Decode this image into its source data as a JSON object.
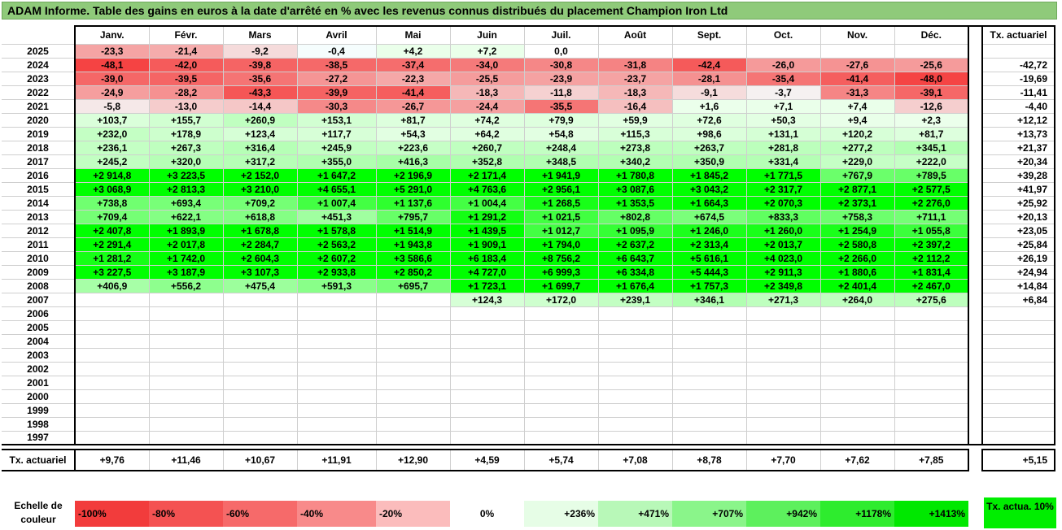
{
  "title": "ADAM Informe. Table des gains en euros à la date d'arrêté en % avec les revenus connus distribués du placement Champion Iron Ltd",
  "months": [
    "Janv.",
    "Févr.",
    "Mars",
    "Avril",
    "Mai",
    "Juin",
    "Juil.",
    "Août",
    "Sept.",
    "Oct.",
    "Nov.",
    "Déc."
  ],
  "actuarial_header": "Tx. actuariel",
  "rows": [
    {
      "year": "2025",
      "values": [
        "-23,3",
        "-21,4",
        "-9,2",
        "-0,4",
        "+4,2",
        "+7,2",
        "0,0",
        "",
        "",
        "",
        "",
        ""
      ],
      "actu": ""
    },
    {
      "year": "2024",
      "values": [
        "-48,1",
        "-42,0",
        "-39,8",
        "-38,5",
        "-37,4",
        "-34,0",
        "-30,8",
        "-31,8",
        "-42,4",
        "-26,0",
        "-27,6",
        "-25,6"
      ],
      "actu": "-42,72"
    },
    {
      "year": "2023",
      "values": [
        "-39,0",
        "-39,5",
        "-35,6",
        "-27,2",
        "-22,3",
        "-25,5",
        "-23,9",
        "-23,7",
        "-28,1",
        "-35,4",
        "-41,4",
        "-48,0"
      ],
      "actu": "-19,69"
    },
    {
      "year": "2022",
      "values": [
        "-24,9",
        "-28,2",
        "-43,3",
        "-39,9",
        "-41,4",
        "-18,3",
        "-11,8",
        "-18,3",
        "-9,1",
        "-3,7",
        "-31,3",
        "-39,1"
      ],
      "actu": "-11,41"
    },
    {
      "year": "2021",
      "values": [
        "-5,8",
        "-13,0",
        "-14,4",
        "-30,3",
        "-26,7",
        "-24,4",
        "-35,5",
        "-16,4",
        "+1,6",
        "+7,1",
        "+7,4",
        "-12,6"
      ],
      "actu": "-4,40"
    },
    {
      "year": "2020",
      "values": [
        "+103,7",
        "+155,7",
        "+260,9",
        "+153,1",
        "+81,7",
        "+74,2",
        "+79,9",
        "+59,9",
        "+72,6",
        "+50,3",
        "+9,4",
        "+2,3"
      ],
      "actu": "+12,12"
    },
    {
      "year": "2019",
      "values": [
        "+232,0",
        "+178,9",
        "+123,4",
        "+117,7",
        "+54,3",
        "+64,2",
        "+54,8",
        "+115,3",
        "+98,6",
        "+131,1",
        "+120,2",
        "+81,7"
      ],
      "actu": "+13,73"
    },
    {
      "year": "2018",
      "values": [
        "+236,1",
        "+267,3",
        "+316,4",
        "+245,9",
        "+223,6",
        "+260,7",
        "+248,4",
        "+273,8",
        "+263,7",
        "+281,8",
        "+277,2",
        "+345,1"
      ],
      "actu": "+21,37"
    },
    {
      "year": "2017",
      "values": [
        "+245,2",
        "+320,0",
        "+317,2",
        "+355,0",
        "+416,3",
        "+352,8",
        "+348,5",
        "+340,2",
        "+350,9",
        "+331,4",
        "+229,0",
        "+222,0"
      ],
      "actu": "+20,34"
    },
    {
      "year": "2016",
      "values": [
        "+2 914,8",
        "+3 223,5",
        "+2 152,0",
        "+1 647,2",
        "+2 196,9",
        "+2 171,4",
        "+1 941,9",
        "+1 780,8",
        "+1 845,2",
        "+1 771,5",
        "+767,9",
        "+789,5"
      ],
      "actu": "+39,28"
    },
    {
      "year": "2015",
      "values": [
        "+3 068,9",
        "+2 813,3",
        "+3 210,0",
        "+4 655,1",
        "+5 291,0",
        "+4 763,6",
        "+2 956,1",
        "+3 087,6",
        "+3 043,2",
        "+2 317,7",
        "+2 877,1",
        "+2 577,5"
      ],
      "actu": "+41,97"
    },
    {
      "year": "2014",
      "values": [
        "+738,8",
        "+693,4",
        "+709,2",
        "+1 007,4",
        "+1 137,6",
        "+1 004,4",
        "+1 268,5",
        "+1 353,5",
        "+1 664,3",
        "+2 070,3",
        "+2 373,1",
        "+2 276,0"
      ],
      "actu": "+25,92"
    },
    {
      "year": "2013",
      "values": [
        "+709,4",
        "+622,1",
        "+618,8",
        "+451,3",
        "+795,7",
        "+1 291,2",
        "+1 021,5",
        "+802,8",
        "+674,5",
        "+833,3",
        "+758,3",
        "+711,1"
      ],
      "actu": "+20,13"
    },
    {
      "year": "2012",
      "values": [
        "+2 407,8",
        "+1 893,9",
        "+1 678,8",
        "+1 578,8",
        "+1 514,9",
        "+1 439,5",
        "+1 012,7",
        "+1 095,9",
        "+1 246,0",
        "+1 260,0",
        "+1 254,9",
        "+1 055,8"
      ],
      "actu": "+23,05"
    },
    {
      "year": "2011",
      "values": [
        "+2 291,4",
        "+2 017,8",
        "+2 284,7",
        "+2 563,2",
        "+1 943,8",
        "+1 909,1",
        "+1 794,0",
        "+2 637,2",
        "+2 313,4",
        "+2 013,7",
        "+2 580,8",
        "+2 397,2"
      ],
      "actu": "+25,84"
    },
    {
      "year": "2010",
      "values": [
        "+1 281,2",
        "+1 742,0",
        "+2 604,3",
        "+2 607,2",
        "+3 586,6",
        "+6 183,4",
        "+8 756,2",
        "+6 643,7",
        "+5 616,1",
        "+4 023,0",
        "+2 266,0",
        "+2 112,2"
      ],
      "actu": "+26,19"
    },
    {
      "year": "2009",
      "values": [
        "+3 227,5",
        "+3 187,9",
        "+3 107,3",
        "+2 933,8",
        "+2 850,2",
        "+4 727,0",
        "+6 999,3",
        "+6 334,8",
        "+5 444,3",
        "+2 911,3",
        "+1 880,6",
        "+1 831,4"
      ],
      "actu": "+24,94"
    },
    {
      "year": "2008",
      "values": [
        "+406,9",
        "+556,2",
        "+475,4",
        "+591,3",
        "+695,7",
        "+1 723,1",
        "+1 699,7",
        "+1 676,4",
        "+1 757,3",
        "+2 349,8",
        "+2 401,4",
        "+2 467,0"
      ],
      "actu": "+14,84"
    },
    {
      "year": "2007",
      "values": [
        "",
        "",
        "",
        "",
        "",
        "+124,3",
        "+172,0",
        "+239,1",
        "+346,1",
        "+271,3",
        "+264,0",
        "+275,6"
      ],
      "actu": "+6,84"
    },
    {
      "year": "2006",
      "values": [
        "",
        "",
        "",
        "",
        "",
        "",
        "",
        "",
        "",
        "",
        "",
        ""
      ],
      "actu": ""
    },
    {
      "year": "2005",
      "values": [
        "",
        "",
        "",
        "",
        "",
        "",
        "",
        "",
        "",
        "",
        "",
        ""
      ],
      "actu": ""
    },
    {
      "year": "2004",
      "values": [
        "",
        "",
        "",
        "",
        "",
        "",
        "",
        "",
        "",
        "",
        "",
        ""
      ],
      "actu": ""
    },
    {
      "year": "2003",
      "values": [
        "",
        "",
        "",
        "",
        "",
        "",
        "",
        "",
        "",
        "",
        "",
        ""
      ],
      "actu": ""
    },
    {
      "year": "2002",
      "values": [
        "",
        "",
        "",
        "",
        "",
        "",
        "",
        "",
        "",
        "",
        "",
        ""
      ],
      "actu": ""
    },
    {
      "year": "2001",
      "values": [
        "",
        "",
        "",
        "",
        "",
        "",
        "",
        "",
        "",
        "",
        "",
        ""
      ],
      "actu": ""
    },
    {
      "year": "2000",
      "values": [
        "",
        "",
        "",
        "",
        "",
        "",
        "",
        "",
        "",
        "",
        "",
        ""
      ],
      "actu": ""
    },
    {
      "year": "1999",
      "values": [
        "",
        "",
        "",
        "",
        "",
        "",
        "",
        "",
        "",
        "",
        "",
        ""
      ],
      "actu": ""
    },
    {
      "year": "1998",
      "values": [
        "",
        "",
        "",
        "",
        "",
        "",
        "",
        "",
        "",
        "",
        "",
        ""
      ],
      "actu": ""
    },
    {
      "year": "1997",
      "values": [
        "",
        "",
        "",
        "",
        "",
        "",
        "",
        "",
        "",
        "",
        "",
        ""
      ],
      "actu": ""
    }
  ],
  "summary": {
    "label": "Tx. actuariel",
    "values": [
      "+9,76",
      "+11,46",
      "+10,67",
      "+11,91",
      "+12,90",
      "+4,59",
      "+5,74",
      "+7,08",
      "+8,78",
      "+7,70",
      "+7,62",
      "+7,85"
    ],
    "actu": "+5,15"
  },
  "scale": {
    "label": "Echelle de couleur",
    "items": [
      {
        "label": "-100%",
        "color": "#f23c3c"
      },
      {
        "label": "-80%",
        "color": "#f45252"
      },
      {
        "label": "-60%",
        "color": "#f66a6a"
      },
      {
        "label": "-40%",
        "color": "#f88a8a"
      },
      {
        "label": "-20%",
        "color": "#fbbcbc"
      },
      {
        "label": "0%",
        "color": "#ffffff"
      },
      {
        "label": "+236%",
        "color": "#e6fde6"
      },
      {
        "label": "+471%",
        "color": "#b8f8b8"
      },
      {
        "label": "+707%",
        "color": "#8af58a"
      },
      {
        "label": "+942%",
        "color": "#5df05d"
      },
      {
        "label": "+1178%",
        "color": "#2eec2e"
      },
      {
        "label": "+1413%",
        "color": "#00e800"
      }
    ],
    "actuarial_swatch": "Tx. actua. 10%"
  }
}
